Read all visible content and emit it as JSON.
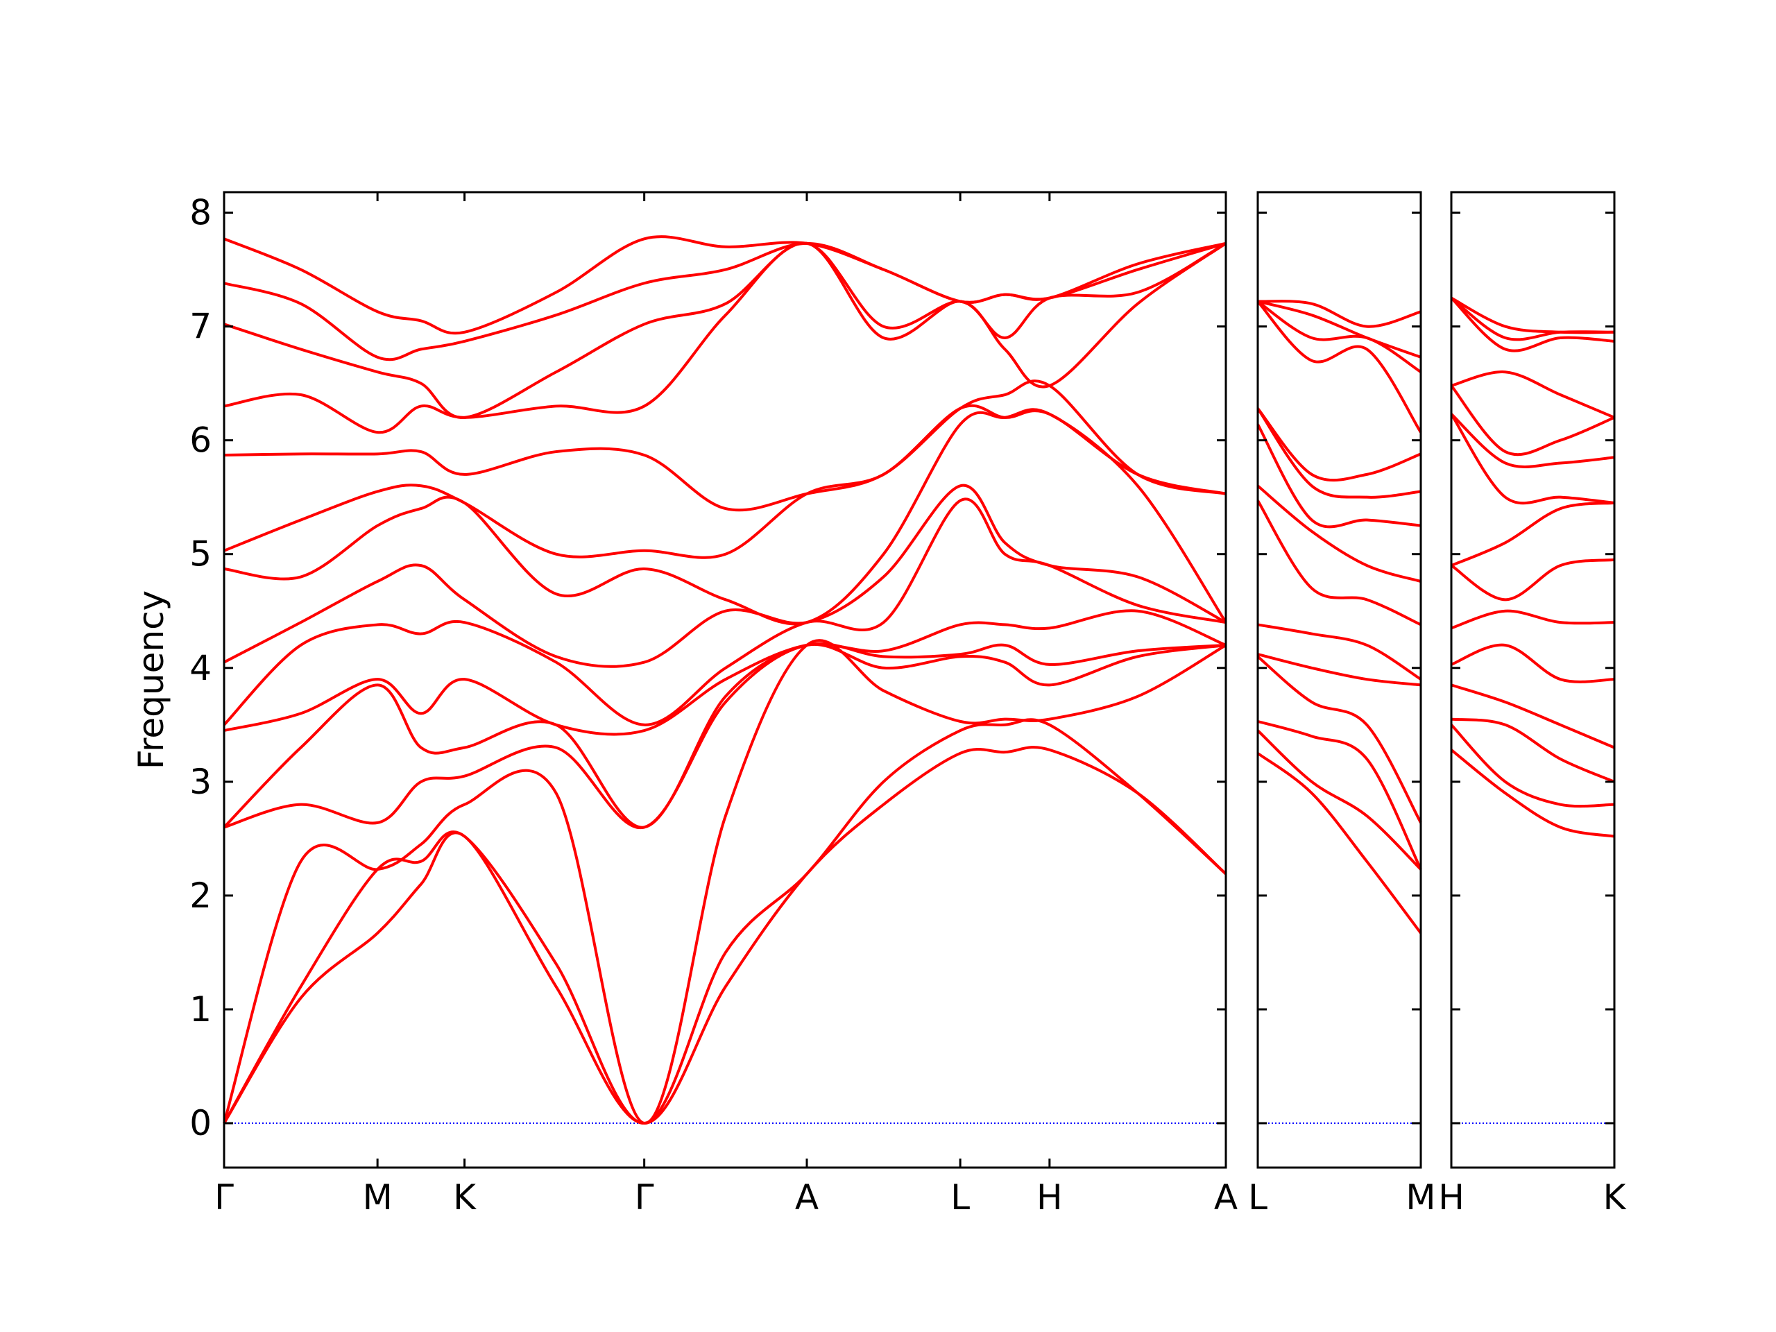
{
  "chart_data": [
    {
      "type": "line",
      "ylabel": "Frequency",
      "color": "#ff0000",
      "hline": {
        "value": 0,
        "color": "#0000ff"
      },
      "xlim": [
        0,
        8.75
      ],
      "ylim": [
        -0.39,
        8.18
      ],
      "yticks": [
        0,
        1,
        2,
        3,
        4,
        5,
        6,
        7,
        8
      ],
      "xticks": [
        {
          "value": 0,
          "label": "Γ"
        },
        {
          "value": 1.34,
          "label": "M"
        },
        {
          "value": 2.1,
          "label": "K"
        },
        {
          "value": 3.67,
          "label": "Γ"
        },
        {
          "value": 5.09,
          "label": "A"
        },
        {
          "value": 6.43,
          "label": "L"
        },
        {
          "value": 7.21,
          "label": "H"
        },
        {
          "value": 8.75,
          "label": "A"
        }
      ],
      "x": [
        0,
        0.67,
        1.34,
        1.72,
        2.1,
        2.9,
        3.67,
        4.38,
        5.09,
        5.76,
        6.43,
        6.82,
        7.21,
        7.98,
        8.75
      ],
      "series": [
        {
          "values": [
            0,
            1.1,
            1.67,
            2.1,
            2.52,
            1.2,
            0,
            1.2,
            2.19,
            2.8,
            3.25,
            3.26,
            3.28,
            2.9,
            2.19
          ]
        },
        {
          "values": [
            0,
            1.2,
            2.23,
            2.3,
            2.52,
            1.4,
            0,
            1.5,
            2.19,
            3.0,
            3.45,
            3.5,
            3.5,
            2.9,
            2.19
          ]
        },
        {
          "values": [
            0,
            2.3,
            2.23,
            2.45,
            2.8,
            2.9,
            0,
            2.7,
            4.2,
            3.8,
            3.53,
            3.55,
            3.55,
            3.75,
            4.2
          ]
        },
        {
          "values": [
            2.6,
            2.8,
            2.64,
            3.0,
            3.05,
            3.3,
            2.6,
            3.7,
            4.2,
            4.0,
            4.1,
            4.05,
            3.85,
            4.1,
            4.2
          ]
        },
        {
          "values": [
            2.6,
            3.3,
            3.85,
            3.3,
            3.3,
            3.5,
            2.6,
            3.75,
            4.2,
            4.1,
            4.12,
            4.2,
            4.03,
            4.15,
            4.2
          ]
        },
        {
          "values": [
            3.45,
            3.6,
            3.9,
            3.6,
            3.9,
            3.5,
            3.45,
            3.9,
            4.2,
            4.15,
            4.38,
            4.38,
            4.35,
            4.5,
            4.2
          ]
        },
        {
          "values": [
            3.5,
            4.2,
            4.38,
            4.3,
            4.4,
            4.05,
            3.5,
            4.0,
            4.4,
            4.4,
            5.47,
            5.0,
            4.9,
            4.55,
            4.4
          ]
        },
        {
          "values": [
            4.05,
            4.4,
            4.76,
            4.9,
            4.6,
            4.1,
            4.05,
            4.5,
            4.4,
            4.8,
            5.6,
            5.1,
            4.9,
            4.8,
            4.4
          ]
        },
        {
          "values": [
            4.87,
            4.8,
            5.25,
            5.4,
            5.45,
            4.65,
            4.87,
            4.6,
            4.4,
            5.0,
            6.14,
            6.2,
            6.23,
            5.6,
            4.4
          ]
        },
        {
          "values": [
            5.03,
            5.3,
            5.55,
            5.6,
            5.45,
            5.0,
            5.03,
            5.0,
            5.53,
            5.7,
            6.28,
            6.2,
            6.23,
            5.7,
            5.53
          ]
        },
        {
          "values": [
            5.87,
            5.88,
            5.88,
            5.9,
            5.7,
            5.9,
            5.87,
            5.4,
            5.53,
            5.7,
            6.28,
            6.4,
            6.48,
            5.7,
            5.53
          ]
        },
        {
          "values": [
            6.3,
            6.4,
            6.07,
            6.3,
            6.2,
            6.3,
            6.3,
            7.1,
            7.73,
            6.9,
            7.22,
            6.8,
            6.48,
            7.2,
            7.73
          ]
        },
        {
          "values": [
            7.02,
            6.8,
            6.6,
            6.5,
            6.2,
            6.6,
            7.02,
            7.2,
            7.73,
            7.0,
            7.22,
            6.9,
            7.25,
            7.3,
            7.73
          ]
        },
        {
          "values": [
            7.38,
            7.2,
            6.73,
            6.8,
            6.87,
            7.1,
            7.38,
            7.5,
            7.73,
            7.5,
            7.22,
            7.28,
            7.25,
            7.5,
            7.73
          ]
        },
        {
          "values": [
            7.77,
            7.5,
            7.13,
            7.05,
            6.95,
            7.3,
            7.77,
            7.7,
            7.73,
            7.5,
            7.22,
            7.28,
            7.25,
            7.55,
            7.73
          ]
        }
      ]
    },
    {
      "type": "line",
      "color": "#ff0000",
      "hline": {
        "value": 0,
        "color": "#0000ff"
      },
      "xlim": [
        0,
        1.42
      ],
      "ylim": [
        -0.39,
        8.18
      ],
      "xticks": [
        {
          "value": 0,
          "label": "L"
        },
        {
          "value": 1.42,
          "label": "M"
        }
      ],
      "x": [
        0,
        0.47,
        0.95,
        1.42
      ],
      "series": [
        {
          "values": [
            3.25,
            2.9,
            2.3,
            1.67
          ]
        },
        {
          "values": [
            3.45,
            3.0,
            2.7,
            2.23
          ]
        },
        {
          "values": [
            3.53,
            3.4,
            3.2,
            2.23
          ]
        },
        {
          "values": [
            4.1,
            3.7,
            3.5,
            2.64
          ]
        },
        {
          "values": [
            4.12,
            4.0,
            3.9,
            3.85
          ]
        },
        {
          "values": [
            4.38,
            4.3,
            4.2,
            3.9
          ]
        },
        {
          "values": [
            5.47,
            4.7,
            4.6,
            4.38
          ]
        },
        {
          "values": [
            5.6,
            5.2,
            4.9,
            4.76
          ]
        },
        {
          "values": [
            6.14,
            5.3,
            5.3,
            5.25
          ]
        },
        {
          "values": [
            6.28,
            5.6,
            5.5,
            5.55
          ]
        },
        {
          "values": [
            6.28,
            5.7,
            5.7,
            5.88
          ]
        },
        {
          "values": [
            7.22,
            6.7,
            6.8,
            6.07
          ]
        },
        {
          "values": [
            7.22,
            6.9,
            6.9,
            6.6
          ]
        },
        {
          "values": [
            7.22,
            7.1,
            6.9,
            6.73
          ]
        },
        {
          "values": [
            7.22,
            7.2,
            7.0,
            7.13
          ]
        }
      ]
    },
    {
      "type": "line",
      "color": "#ff0000",
      "hline": {
        "value": 0,
        "color": "#0000ff"
      },
      "xlim": [
        0,
        1.42
      ],
      "ylim": [
        -0.39,
        8.18
      ],
      "xticks": [
        {
          "value": 0,
          "label": "H"
        },
        {
          "value": 1.42,
          "label": "K"
        }
      ],
      "x": [
        0,
        0.47,
        0.95,
        1.42
      ],
      "series": [
        {
          "values": [
            3.28,
            2.9,
            2.6,
            2.52
          ]
        },
        {
          "values": [
            3.5,
            3.0,
            2.8,
            2.8
          ]
        },
        {
          "values": [
            3.55,
            3.5,
            3.2,
            3.0
          ]
        },
        {
          "values": [
            3.85,
            3.7,
            3.5,
            3.3
          ]
        },
        {
          "values": [
            4.03,
            4.2,
            3.9,
            3.9
          ]
        },
        {
          "values": [
            4.35,
            4.5,
            4.4,
            4.4
          ]
        },
        {
          "values": [
            4.9,
            4.6,
            4.9,
            4.95
          ]
        },
        {
          "values": [
            4.9,
            5.1,
            5.4,
            5.45
          ]
        },
        {
          "values": [
            6.23,
            5.5,
            5.5,
            5.45
          ]
        },
        {
          "values": [
            6.23,
            5.8,
            5.8,
            5.85
          ]
        },
        {
          "values": [
            6.48,
            5.9,
            6.0,
            6.2
          ]
        },
        {
          "values": [
            6.48,
            6.6,
            6.4,
            6.2
          ]
        },
        {
          "values": [
            7.25,
            6.8,
            6.9,
            6.87
          ]
        },
        {
          "values": [
            7.25,
            6.9,
            6.95,
            6.95
          ]
        },
        {
          "values": [
            7.25,
            7.0,
            6.95,
            6.95
          ]
        }
      ]
    }
  ]
}
